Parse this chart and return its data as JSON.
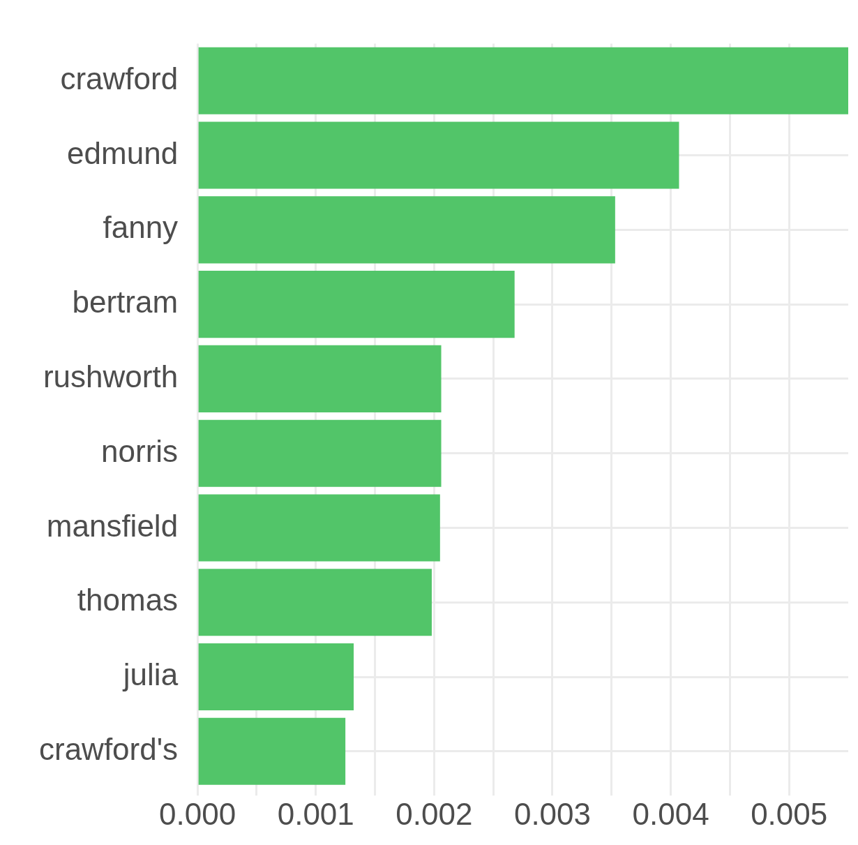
{
  "chart_data": {
    "type": "bar",
    "orientation": "horizontal",
    "categories": [
      "crawford",
      "edmund",
      "fanny",
      "bertram",
      "rushworth",
      "norris",
      "mansfield",
      "thomas",
      "julia",
      "crawford's"
    ],
    "values": [
      0.0055,
      0.00407,
      0.00353,
      0.00268,
      0.00206,
      0.00206,
      0.00205,
      0.00198,
      0.00132,
      0.00125
    ],
    "color": "#52c569",
    "xlim": [
      0,
      0.0055
    ],
    "xticks": [
      {
        "value": 0,
        "label": "0.000"
      },
      {
        "value": 0.0005,
        "label": null
      },
      0.001,
      {
        "value": 0.0015,
        "label": null
      },
      0.002,
      {
        "value": 0.0025,
        "label": null
      },
      0.003,
      {
        "value": 0.0035,
        "label": null
      },
      0.004,
      {
        "value": 0.0045,
        "label": null
      },
      0.005
    ],
    "grid": true,
    "legend": false
  }
}
